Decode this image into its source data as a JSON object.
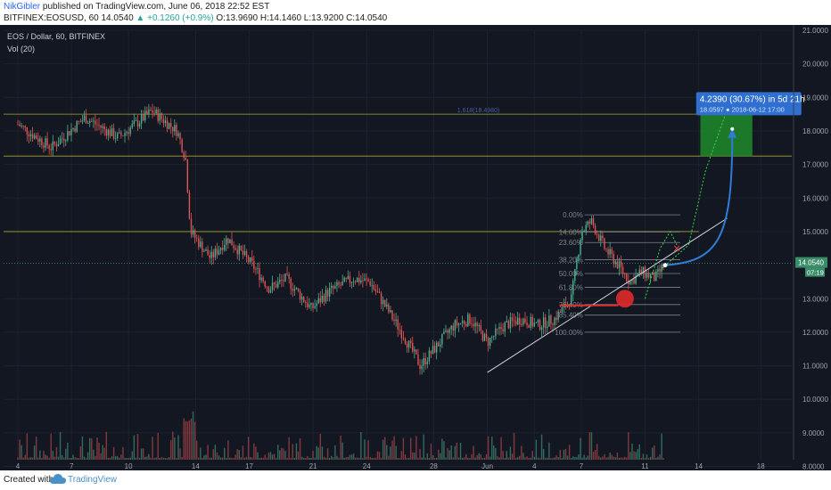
{
  "header": {
    "author": "NikGibler",
    "published_text": "published on TradingView.com, June 06, 2018 22:52 EST",
    "symbol": "BITFINEX:EOSUSD, 60",
    "last": "14.0540",
    "change": "▲ +0.1260 (+0.9%)",
    "ohlc": "O:13.9690 H:14.1460 L:13.9200 C:14.0540"
  },
  "legend": {
    "title": "EOS / Dollar, 60, BITFINEX",
    "volume": "Vol (20)"
  },
  "footer": {
    "created": "Created with",
    "brand": "TradingView"
  },
  "colors": {
    "background": "#131722",
    "grid": "#1e2230",
    "up": "#4caf8f",
    "down": "#e05454",
    "target_box": "#1f8b2c",
    "hlines": "#c8c832",
    "projection": "#2f7bd8"
  },
  "chart_data": {
    "type": "candlestick",
    "title": "EOS / Dollar, 60, BITFINEX",
    "ylim": [
      8.2,
      21.0
    ],
    "y_ticks": [
      "21.0000",
      "20.0000",
      "19.0000",
      "18.0000",
      "17.0000",
      "16.0000",
      "15.0000",
      "13.0000",
      "12.0000",
      "11.0000",
      "10.0000",
      "9.0000",
      "8.0000"
    ],
    "x_ticks": [
      "4",
      "7",
      "10",
      "14",
      "17",
      "21",
      "24",
      "28",
      "Jun",
      "4",
      "7",
      "11",
      "14",
      "18"
    ],
    "price_path": [
      [
        0,
        18.2
      ],
      [
        2,
        17.5
      ],
      [
        4,
        18.4
      ],
      [
        6,
        17.8
      ],
      [
        8,
        18.6
      ],
      [
        9.5,
        18.0
      ],
      [
        10,
        17.2
      ],
      [
        10.3,
        15.0
      ],
      [
        11.5,
        14.2
      ],
      [
        12.5,
        14.8
      ],
      [
        14,
        14.0
      ],
      [
        15,
        13.3
      ],
      [
        16,
        13.6
      ],
      [
        17.5,
        12.7
      ],
      [
        18.5,
        13.2
      ],
      [
        20,
        13.6
      ],
      [
        21,
        13.5
      ],
      [
        22,
        12.7
      ],
      [
        23,
        11.9
      ],
      [
        24,
        11.0
      ],
      [
        25,
        11.6
      ],
      [
        26,
        12.2
      ],
      [
        27,
        12.4
      ],
      [
        28,
        11.7
      ],
      [
        29,
        12.2
      ],
      [
        30,
        12.4
      ],
      [
        31,
        12.2
      ],
      [
        32,
        12.4
      ],
      [
        33,
        13.0
      ],
      [
        33.6,
        15.0
      ],
      [
        34.2,
        15.3
      ],
      [
        35,
        14.5
      ],
      [
        35.8,
        14.0
      ],
      [
        36.5,
        13.5
      ],
      [
        37.2,
        13.8
      ],
      [
        38,
        13.6
      ],
      [
        38.6,
        14.05
      ]
    ],
    "horizontal_levels": [
      18.5,
      17.25,
      15.0
    ],
    "fibonacci": {
      "levels": [
        "0.00%",
        "14.60%",
        "23.60%",
        "38.20%",
        "50.00%",
        "61.80%",
        "76.40%",
        "85.40%",
        "100.00%"
      ],
      "top_label": "1.618(18.4980)"
    },
    "last_price": "14.0540",
    "countdown": "07:19",
    "projection": {
      "label": "4.2390 (30.67%) in 5d 21h",
      "sublabel": "18.0597 ● 2018-06-12 17:00",
      "target": 18.0597
    },
    "volume_label": "Vol (20)"
  }
}
